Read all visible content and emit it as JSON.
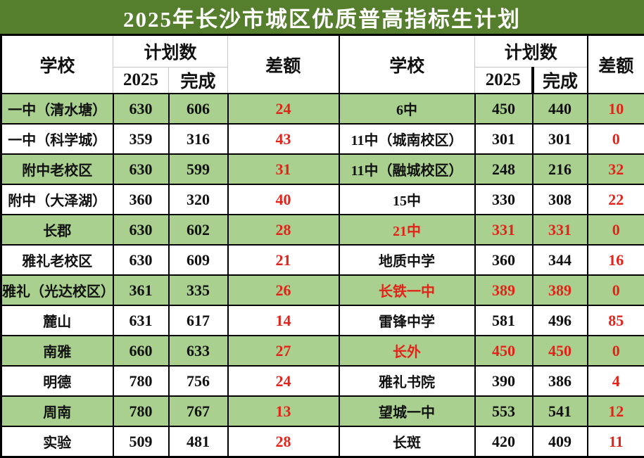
{
  "title": "2025年长沙市城区优质普高指标生计划",
  "colors": {
    "title_background": "#567f2d",
    "striped_row_green": "#a9d08e",
    "difference_red": "#e2231a"
  },
  "headers": {
    "school": "学校",
    "plan": "计划数",
    "year": "2025",
    "done": "完成",
    "diff": "差额"
  },
  "table": {
    "rows": [
      {
        "l_name": "一中（清水塘）",
        "l_plan": "630",
        "l_done": "606",
        "l_diff": "24",
        "r_name": "6中",
        "r_plan": "450",
        "r_done": "440",
        "r_diff": "10",
        "r_red": false
      },
      {
        "l_name": "一中（科学城）",
        "l_plan": "359",
        "l_done": "316",
        "l_diff": "43",
        "r_name": "11中（城南校区）",
        "r_plan": "301",
        "r_done": "301",
        "r_diff": "0",
        "r_red": false
      },
      {
        "l_name": "附中老校区",
        "l_plan": "630",
        "l_done": "599",
        "l_diff": "31",
        "r_name": "11中（融城校区）",
        "r_plan": "248",
        "r_done": "216",
        "r_diff": "32",
        "r_red": false
      },
      {
        "l_name": "附中（大泽湖）",
        "l_plan": "360",
        "l_done": "320",
        "l_diff": "40",
        "r_name": "15中",
        "r_plan": "330",
        "r_done": "308",
        "r_diff": "22",
        "r_red": false
      },
      {
        "l_name": "长郡",
        "l_plan": "630",
        "l_done": "602",
        "l_diff": "28",
        "r_name": "21中",
        "r_plan": "331",
        "r_done": "331",
        "r_diff": "0",
        "r_red": true
      },
      {
        "l_name": "雅礼老校区",
        "l_plan": "630",
        "l_done": "609",
        "l_diff": "21",
        "r_name": "地质中学",
        "r_plan": "360",
        "r_done": "344",
        "r_diff": "16",
        "r_red": false
      },
      {
        "l_name": "雅礼（光达校区）",
        "l_plan": "361",
        "l_done": "335",
        "l_diff": "26",
        "r_name": "长铁一中",
        "r_plan": "389",
        "r_done": "389",
        "r_diff": "0",
        "r_red": true
      },
      {
        "l_name": "麓山",
        "l_plan": "631",
        "l_done": "617",
        "l_diff": "14",
        "r_name": "雷锋中学",
        "r_plan": "581",
        "r_done": "496",
        "r_diff": "85",
        "r_red": false
      },
      {
        "l_name": "南雅",
        "l_plan": "660",
        "l_done": "633",
        "l_diff": "27",
        "r_name": "长外",
        "r_plan": "450",
        "r_done": "450",
        "r_diff": "0",
        "r_red": true
      },
      {
        "l_name": "明德",
        "l_plan": "780",
        "l_done": "756",
        "l_diff": "24",
        "r_name": "雅礼书院",
        "r_plan": "390",
        "r_done": "386",
        "r_diff": "4",
        "r_red": false
      },
      {
        "l_name": "周南",
        "l_plan": "780",
        "l_done": "767",
        "l_diff": "13",
        "r_name": "望城一中",
        "r_plan": "553",
        "r_done": "541",
        "r_diff": "12",
        "r_red": false
      },
      {
        "l_name": "实验",
        "l_plan": "509",
        "l_done": "481",
        "l_diff": "28",
        "r_name": "长斑",
        "r_plan": "420",
        "r_done": "409",
        "r_diff": "11",
        "r_red": false
      }
    ]
  }
}
